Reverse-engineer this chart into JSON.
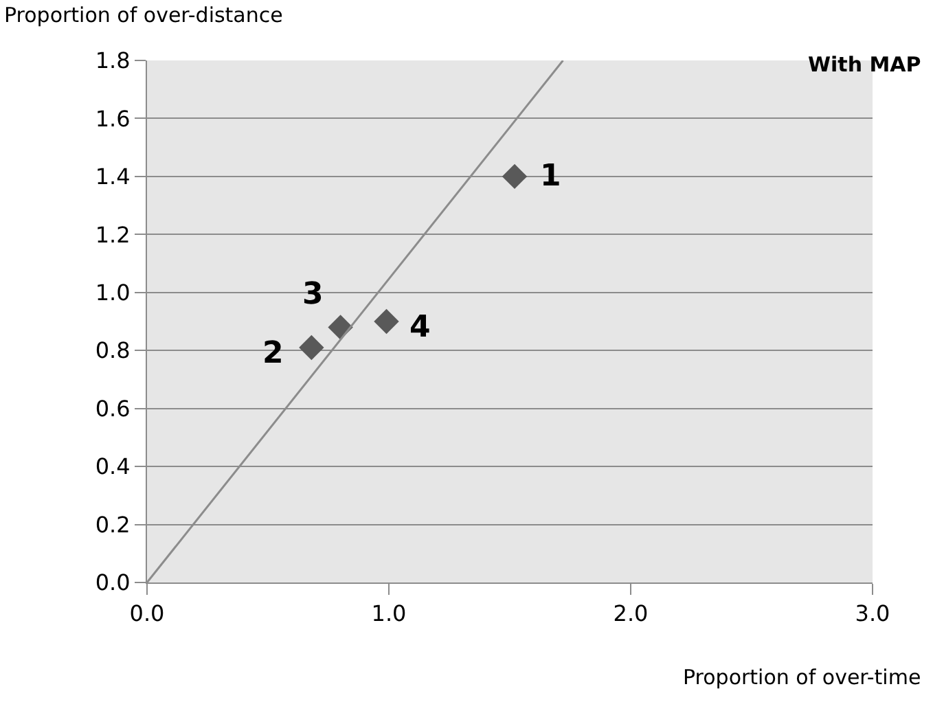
{
  "chart_data": {
    "type": "scatter",
    "title": "With MAP",
    "xlabel": "Proportion of over-time",
    "ylabel": "Proportion of over-distance",
    "x": [
      1.52,
      0.68,
      0.8,
      0.99
    ],
    "series": [
      {
        "color": "#595959",
        "values": [
          1.4,
          0.81,
          0.88,
          0.9
        ],
        "marker": "diamond"
      },
      {
        "type": "line",
        "color": "#8c8c8c",
        "x": [
          0,
          1.72
        ],
        "values": [
          0,
          1.8
        ],
        "marker": "none"
      }
    ],
    "annotations": [
      {
        "text": "1",
        "x": 1.52,
        "y": 1.4
      },
      {
        "text": "2",
        "x": 0.68,
        "y": 0.81
      },
      {
        "text": "3",
        "x": 0.8,
        "y": 0.88
      },
      {
        "text": "4",
        "x": 0.99,
        "y": 0.9
      }
    ],
    "xlim": [
      0,
      3
    ],
    "xticks": [
      {
        "value": 0,
        "label": "0.0"
      },
      {
        "value": 1,
        "label": "1.0"
      },
      {
        "value": 2,
        "label": "2.0"
      },
      {
        "value": 3,
        "label": "3.0"
      }
    ],
    "ylim": [
      0,
      1.8
    ],
    "yticks": [
      {
        "value": 0,
        "label": "0.0"
      },
      {
        "value": 0.2,
        "label": "0.2"
      },
      {
        "value": 0.4,
        "label": "0.4"
      },
      {
        "value": 0.6,
        "label": "0.6"
      },
      {
        "value": 0.8,
        "label": "0.8"
      },
      {
        "value": 1.0,
        "label": "1.0"
      },
      {
        "value": 1.2,
        "label": "1.2"
      },
      {
        "value": 1.4,
        "label": "1.4"
      },
      {
        "value": 1.6,
        "label": "1.6"
      },
      {
        "value": 1.8,
        "label": "1.8"
      }
    ],
    "grid": "y"
  }
}
